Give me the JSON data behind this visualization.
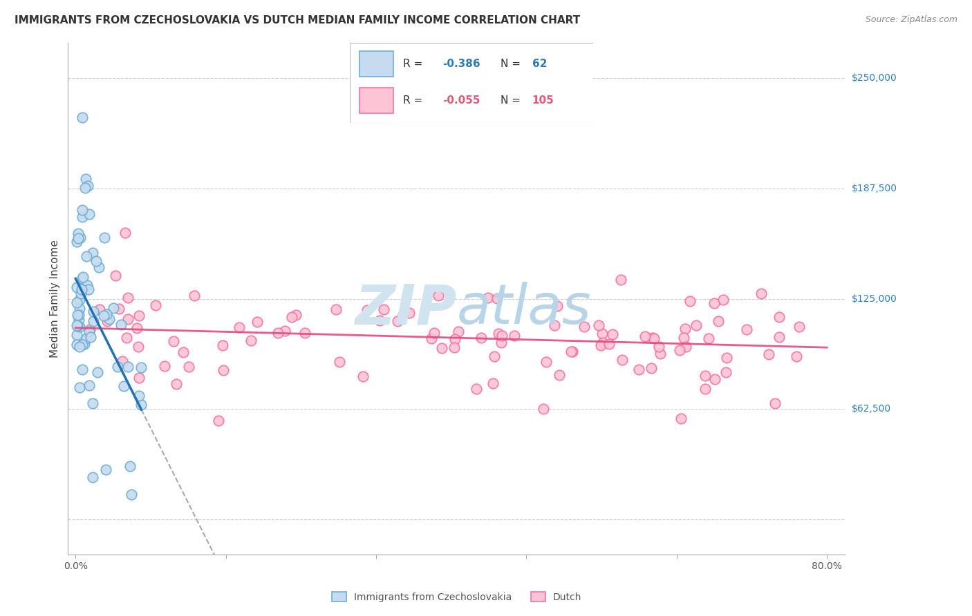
{
  "title": "IMMIGRANTS FROM CZECHOSLOVAKIA VS DUTCH MEDIAN FAMILY INCOME CORRELATION CHART",
  "source": "Source: ZipAtlas.com",
  "ylabel": "Median Family Income",
  "legend_label1": "Immigrants from Czechoslovakia",
  "legend_label2": "Dutch",
  "R1": -0.386,
  "N1": 62,
  "R2": -0.055,
  "N2": 105,
  "color1_edge": "#6baed6",
  "color1_fill": "#c6dbef",
  "color1_line": "#2171b5",
  "color2_edge": "#fb6fa0",
  "color2_fill": "#fcc4d4",
  "color2_line": "#e8477a",
  "watermark_color": "#d0e4f0",
  "yticks": [
    0,
    62500,
    125000,
    187500,
    250000
  ],
  "ytick_labels_right": [
    "",
    "$62,500",
    "$125,000",
    "$187,500",
    "$250,000"
  ],
  "xtick_vals": [
    0.0,
    0.16,
    0.32,
    0.48,
    0.64,
    0.8
  ],
  "xtick_labels": [
    "0.0%",
    "",
    "",
    "",
    "",
    "80.0%"
  ]
}
